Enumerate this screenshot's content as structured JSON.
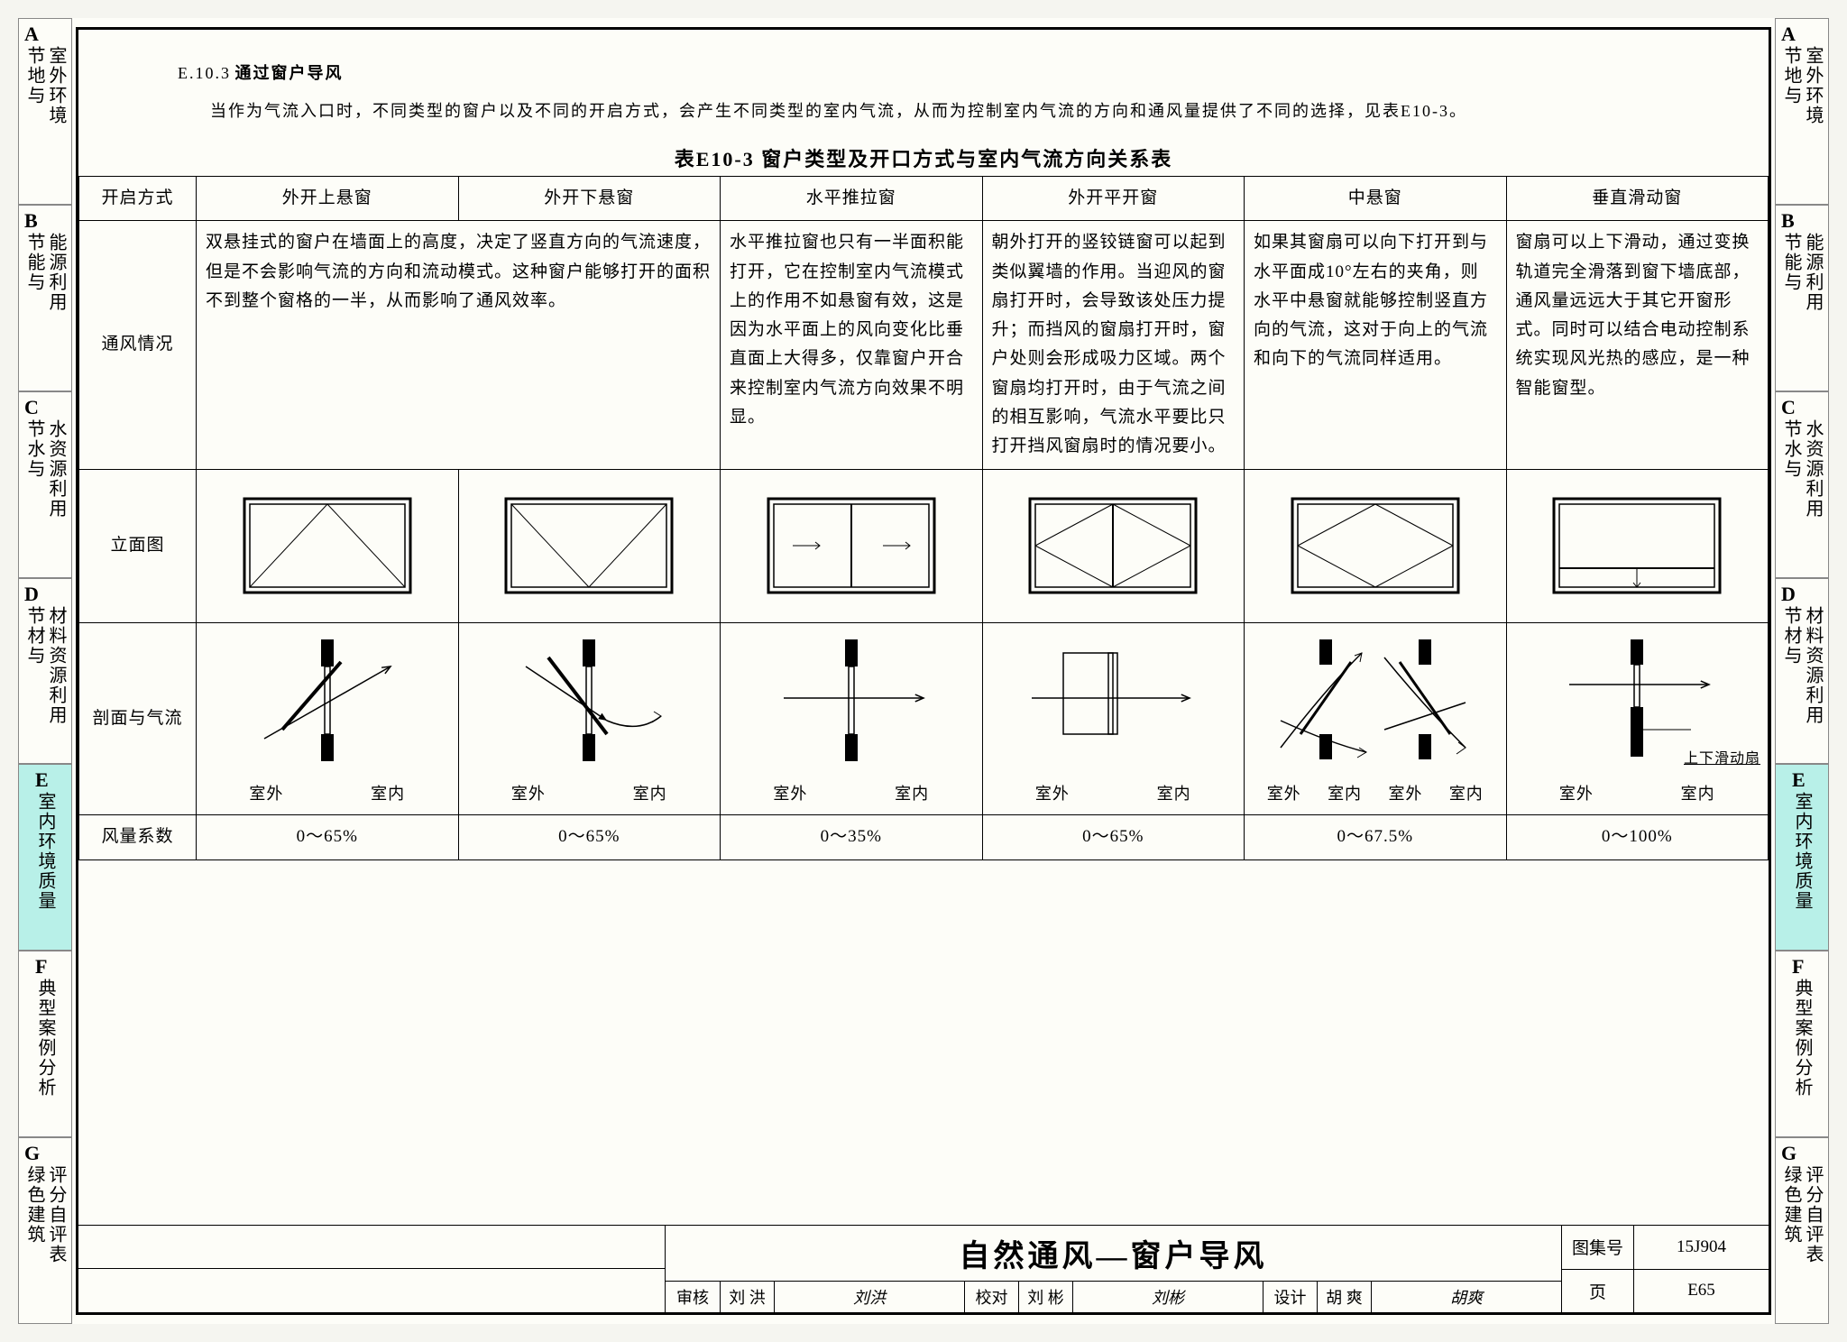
{
  "side_tabs": [
    {
      "letter": "A",
      "l1": "室外环境",
      "l2": "节地与",
      "active": false
    },
    {
      "letter": "B",
      "l1": "能源利用",
      "l2": "节能与",
      "active": false
    },
    {
      "letter": "C",
      "l1": "水资源利用",
      "l2": "节水与",
      "active": false
    },
    {
      "letter": "D",
      "l1": "材料资源利用",
      "l2": "节材与",
      "active": false
    },
    {
      "letter": "E",
      "l1": "室内环境质量",
      "l2": "",
      "active": true
    },
    {
      "letter": "F",
      "l1": "典型案例分析",
      "l2": "",
      "active": false
    },
    {
      "letter": "G",
      "l1": "评分自评表",
      "l2": "绿色建筑",
      "active": false
    }
  ],
  "section": {
    "number": "E.10.3",
    "title": "通过窗户导风",
    "paragraph": "当作为气流入口时，不同类型的窗户以及不同的开启方式，会产生不同类型的室内气流，从而为控制室内气流的方向和通风量提供了不同的选择，见表E10-3。"
  },
  "table": {
    "caption": "表E10-3  窗户类型及开口方式与室内气流方向关系表",
    "row_headers": [
      "开启方式",
      "通风情况",
      "立面图",
      "剖面与气流",
      "风量系数"
    ],
    "columns": [
      {
        "header": "外开上悬窗",
        "desc": "双悬挂式的窗户在墙面上的高度，决定了竖直方向的气流速度，但是不会影响气流的方向和流动模式。这种窗户能够打开的面积不到整个窗格的一半，从而影响了通风效率。",
        "elev": "top-hung-out",
        "section": "angled-up",
        "coeff": "0～65%",
        "span_desc": true
      },
      {
        "header": "外开下悬窗",
        "desc": "",
        "elev": "bottom-hung-out",
        "section": "angled-down",
        "coeff": "0～65%"
      },
      {
        "header": "水平推拉窗",
        "desc": "水平推拉窗也只有一半面积能打开，它在控制室内气流模式上的作用不如悬窗有效，这是因为水平面上的风向变化比垂直面上大得多，仅靠窗户开合来控制室内气流方向效果不明显。",
        "elev": "sliding",
        "section": "straight",
        "coeff": "0～35%"
      },
      {
        "header": "外开平开窗",
        "desc": "朝外打开的竖铰链窗可以起到类似翼墙的作用。当迎风的窗扇打开时，会导致该处压力提升；而挡风的窗扇打开时，窗户处则会形成吸力区域。两个窗扇均打开时，由于气流之间的相互影响，气流水平要比只打开挡风窗扇时的情况要小。",
        "elev": "casement",
        "section": "casement-sec",
        "coeff": "0～65%"
      },
      {
        "header": "中悬窗",
        "desc": "如果其窗扇可以向下打开到与水平面成10°左右的夹角，则水平中悬窗就能够控制竖直方向的气流，这对于向上的气流和向下的气流同样适用。",
        "elev": "pivot",
        "section": "pivot-sec",
        "coeff": "0～67.5%"
      },
      {
        "header": "垂直滑动窗",
        "desc": "窗扇可以上下滑动，通过变换轨道完全滑落到窗下墙底部，通风量远远大于其它开窗形式。同时可以结合电动控制系统实现风光热的感应，是一种智能窗型。",
        "elev": "vertical-slide",
        "section": "vslide-sec",
        "section_note": "上下滑动扇",
        "coeff": "0～100%"
      }
    ],
    "section_labels": {
      "left": "室外",
      "right": "室内"
    }
  },
  "titleblock": {
    "title": "自然通风—窗户导风",
    "drawing_no_label": "图集号",
    "drawing_no": "15J904",
    "page_label": "页",
    "page": "E65",
    "sigs": [
      {
        "role": "审核",
        "name": "刘 洪",
        "sig": "刘洪"
      },
      {
        "role": "校对",
        "name": "刘 彬",
        "sig": "刘彬"
      },
      {
        "role": "设计",
        "name": "胡 爽",
        "sig": "胡爽"
      }
    ]
  },
  "colors": {
    "tab_active": "#b8f0e8",
    "border": "#000000",
    "bg": "#fdfdf8"
  }
}
